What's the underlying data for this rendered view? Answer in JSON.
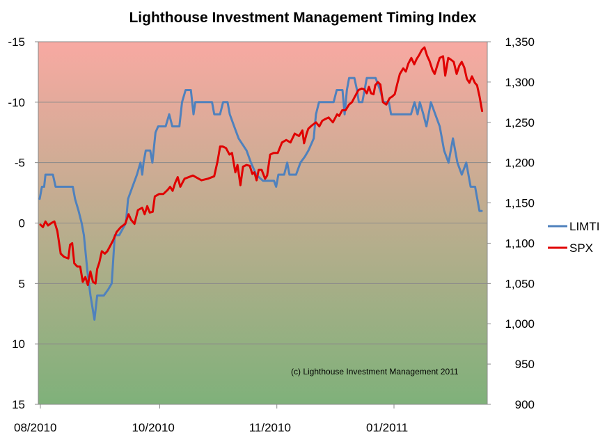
{
  "chart_data": {
    "type": "line",
    "title": "Lighthouse Investment Management Timing Index",
    "annotation": "(c) Lighthouse Investment Management 2011",
    "x_tick_labels": [
      "08/2010",
      "10/2010",
      "11/2010",
      "01/2011"
    ],
    "x_tick_positions": [
      0,
      0.27,
      0.535,
      0.8
    ],
    "y_left": {
      "min": -15,
      "max": 15,
      "inverted": true,
      "ticks": [
        -15,
        -10,
        -5,
        0,
        5,
        10,
        15
      ],
      "tick_labels": [
        "-15",
        "-10",
        "-5",
        "0",
        "5",
        "10",
        "15"
      ]
    },
    "y_right": {
      "min": 900,
      "max": 1350,
      "ticks": [
        1350,
        1300,
        1250,
        1200,
        1150,
        1100,
        1050,
        1000,
        950,
        900
      ],
      "tick_labels": [
        "1,350",
        "1,300",
        "1,250",
        "1,200",
        "1,150",
        "1,100",
        "1,050",
        "1,000",
        "950",
        "900"
      ]
    },
    "grid": "horizontal",
    "background_gradient": {
      "top": "#f8a9a2",
      "bottom": "#7fb17a"
    },
    "legend_position": "right",
    "series": [
      {
        "name": "LIMTI",
        "axis": "left",
        "color": "#4f81bd",
        "points": [
          [
            0.0,
            -2
          ],
          [
            0.005,
            -3
          ],
          [
            0.01,
            -3
          ],
          [
            0.013,
            -4
          ],
          [
            0.03,
            -4
          ],
          [
            0.036,
            -3
          ],
          [
            0.075,
            -3
          ],
          [
            0.08,
            -2
          ],
          [
            0.088,
            -1
          ],
          [
            0.095,
            0
          ],
          [
            0.1,
            1
          ],
          [
            0.108,
            4
          ],
          [
            0.115,
            6
          ],
          [
            0.124,
            8
          ],
          [
            0.13,
            6
          ],
          [
            0.145,
            6
          ],
          [
            0.155,
            5.5
          ],
          [
            0.163,
            5
          ],
          [
            0.17,
            1
          ],
          [
            0.18,
            1
          ],
          [
            0.195,
            0
          ],
          [
            0.2,
            -2
          ],
          [
            0.21,
            -3
          ],
          [
            0.22,
            -4
          ],
          [
            0.228,
            -5
          ],
          [
            0.232,
            -4
          ],
          [
            0.235,
            -5
          ],
          [
            0.24,
            -6
          ],
          [
            0.25,
            -6
          ],
          [
            0.255,
            -5
          ],
          [
            0.262,
            -7.5
          ],
          [
            0.268,
            -8
          ],
          [
            0.285,
            -8
          ],
          [
            0.293,
            -9
          ],
          [
            0.3,
            -8
          ],
          [
            0.316,
            -8
          ],
          [
            0.322,
            -10
          ],
          [
            0.33,
            -11
          ],
          [
            0.342,
            -11
          ],
          [
            0.348,
            -9
          ],
          [
            0.352,
            -10
          ],
          [
            0.39,
            -10
          ],
          [
            0.395,
            -9
          ],
          [
            0.408,
            -9
          ],
          [
            0.415,
            -10
          ],
          [
            0.425,
            -10
          ],
          [
            0.43,
            -9
          ],
          [
            0.44,
            -8
          ],
          [
            0.45,
            -7
          ],
          [
            0.468,
            -6
          ],
          [
            0.478,
            -5
          ],
          [
            0.49,
            -4
          ],
          [
            0.505,
            -3.5
          ],
          [
            0.53,
            -3.5
          ],
          [
            0.535,
            -3
          ],
          [
            0.54,
            -4
          ],
          [
            0.553,
            -4
          ],
          [
            0.56,
            -5
          ],
          [
            0.565,
            -4
          ],
          [
            0.58,
            -4
          ],
          [
            0.59,
            -5
          ],
          [
            0.6,
            -5.5
          ],
          [
            0.608,
            -6
          ],
          [
            0.62,
            -7
          ],
          [
            0.625,
            -9
          ],
          [
            0.632,
            -10
          ],
          [
            0.665,
            -10
          ],
          [
            0.672,
            -11
          ],
          [
            0.685,
            -11
          ],
          [
            0.69,
            -9
          ],
          [
            0.695,
            -11
          ],
          [
            0.7,
            -12
          ],
          [
            0.712,
            -12
          ],
          [
            0.718,
            -11
          ],
          [
            0.722,
            -10
          ],
          [
            0.73,
            -10
          ],
          [
            0.74,
            -12
          ],
          [
            0.76,
            -12
          ],
          [
            0.77,
            -11
          ],
          [
            0.778,
            -10
          ],
          [
            0.79,
            -10
          ],
          [
            0.795,
            -9
          ],
          [
            0.84,
            -9
          ],
          [
            0.848,
            -10
          ],
          [
            0.855,
            -9
          ],
          [
            0.86,
            -10
          ],
          [
            0.868,
            -9
          ],
          [
            0.875,
            -8
          ],
          [
            0.885,
            -10
          ],
          [
            0.895,
            -9
          ],
          [
            0.905,
            -8
          ],
          [
            0.915,
            -6
          ],
          [
            0.925,
            -5
          ],
          [
            0.935,
            -7
          ],
          [
            0.945,
            -5
          ],
          [
            0.955,
            -4
          ],
          [
            0.965,
            -5
          ],
          [
            0.975,
            -3
          ],
          [
            0.985,
            -3
          ],
          [
            0.995,
            -1
          ],
          [
            1.0,
            -1
          ]
        ]
      },
      {
        "name": "SPX",
        "axis": "right",
        "color": "#e00000",
        "points": [
          [
            0.0,
            1123
          ],
          [
            0.006,
            1120
          ],
          [
            0.012,
            1127
          ],
          [
            0.018,
            1122
          ],
          [
            0.026,
            1125
          ],
          [
            0.033,
            1127
          ],
          [
            0.04,
            1115
          ],
          [
            0.048,
            1087
          ],
          [
            0.056,
            1083
          ],
          [
            0.066,
            1081
          ],
          [
            0.07,
            1098
          ],
          [
            0.075,
            1100
          ],
          [
            0.08,
            1075
          ],
          [
            0.087,
            1071
          ],
          [
            0.094,
            1071
          ],
          [
            0.1,
            1052
          ],
          [
            0.106,
            1058
          ],
          [
            0.112,
            1048
          ],
          [
            0.118,
            1065
          ],
          [
            0.124,
            1052
          ],
          [
            0.13,
            1050
          ],
          [
            0.134,
            1068
          ],
          [
            0.139,
            1076
          ],
          [
            0.145,
            1090
          ],
          [
            0.152,
            1087
          ],
          [
            0.158,
            1090
          ],
          [
            0.166,
            1098
          ],
          [
            0.172,
            1104
          ],
          [
            0.18,
            1114
          ],
          [
            0.19,
            1120
          ],
          [
            0.2,
            1124
          ],
          [
            0.208,
            1136
          ],
          [
            0.214,
            1129
          ],
          [
            0.222,
            1124
          ],
          [
            0.23,
            1141
          ],
          [
            0.24,
            1144
          ],
          [
            0.246,
            1136
          ],
          [
            0.252,
            1146
          ],
          [
            0.258,
            1138
          ],
          [
            0.265,
            1139
          ],
          [
            0.27,
            1158
          ],
          [
            0.28,
            1161
          ],
          [
            0.29,
            1161
          ],
          [
            0.3,
            1166
          ],
          [
            0.306,
            1170
          ],
          [
            0.312,
            1165
          ],
          [
            0.318,
            1175
          ],
          [
            0.324,
            1182
          ],
          [
            0.33,
            1170
          ],
          [
            0.34,
            1180
          ],
          [
            0.36,
            1184
          ],
          [
            0.38,
            1178
          ],
          [
            0.395,
            1180
          ],
          [
            0.41,
            1183
          ],
          [
            0.418,
            1202
          ],
          [
            0.424,
            1220
          ],
          [
            0.43,
            1220
          ],
          [
            0.438,
            1218
          ],
          [
            0.446,
            1210
          ],
          [
            0.452,
            1212
          ],
          [
            0.46,
            1188
          ],
          [
            0.465,
            1197
          ],
          [
            0.472,
            1172
          ],
          [
            0.478,
            1195
          ],
          [
            0.486,
            1197
          ],
          [
            0.494,
            1196
          ],
          [
            0.5,
            1186
          ],
          [
            0.505,
            1188
          ],
          [
            0.51,
            1178
          ],
          [
            0.515,
            1191
          ],
          [
            0.522,
            1191
          ],
          [
            0.53,
            1180
          ],
          [
            0.535,
            1184
          ],
          [
            0.542,
            1210
          ],
          [
            0.55,
            1212
          ],
          [
            0.56,
            1212
          ],
          [
            0.57,
            1225
          ],
          [
            0.58,
            1228
          ],
          [
            0.59,
            1225
          ],
          [
            0.6,
            1236
          ],
          [
            0.61,
            1233
          ],
          [
            0.618,
            1240
          ],
          [
            0.622,
            1224
          ],
          [
            0.628,
            1236
          ],
          [
            0.632,
            1242
          ],
          [
            0.64,
            1246
          ],
          [
            0.65,
            1250
          ],
          [
            0.658,
            1245
          ],
          [
            0.665,
            1252
          ],
          [
            0.672,
            1254
          ],
          [
            0.68,
            1256
          ],
          [
            0.69,
            1250
          ],
          [
            0.7,
            1260
          ],
          [
            0.705,
            1258
          ],
          [
            0.712,
            1265
          ],
          [
            0.72,
            1265
          ],
          [
            0.728,
            1272
          ],
          [
            0.735,
            1275
          ],
          [
            0.742,
            1282
          ],
          [
            0.75,
            1290
          ],
          [
            0.758,
            1292
          ],
          [
            0.764,
            1291
          ],
          [
            0.77,
            1286
          ],
          [
            0.775,
            1294
          ],
          [
            0.78,
            1286
          ],
          [
            0.786,
            1285
          ],
          [
            0.79,
            1296
          ],
          [
            0.796,
            1300
          ],
          [
            0.802,
            1297
          ],
          [
            0.808,
            1275
          ],
          [
            0.816,
            1272
          ],
          [
            0.824,
            1280
          ],
          [
            0.83,
            1282
          ],
          [
            0.836,
            1285
          ],
          [
            0.842,
            1298
          ],
          [
            0.848,
            1310
          ],
          [
            0.856,
            1317
          ],
          [
            0.862,
            1313
          ],
          [
            0.868,
            1323
          ],
          [
            0.875,
            1330
          ],
          [
            0.882,
            1322
          ],
          [
            0.888,
            1329
          ],
          [
            0.893,
            1333
          ],
          [
            0.9,
            1340
          ],
          [
            0.906,
            1343
          ],
          [
            0.912,
            1333
          ],
          [
            0.918,
            1326
          ],
          [
            0.925,
            1315
          ],
          [
            0.93,
            1310
          ],
          [
            0.936,
            1320
          ],
          [
            0.942,
            1330
          ],
          [
            0.95,
            1332
          ],
          [
            0.955,
            1308
          ],
          [
            0.962,
            1330
          ],
          [
            0.968,
            1328
          ],
          [
            0.975,
            1325
          ],
          [
            0.982,
            1310
          ],
          [
            0.988,
            1320
          ],
          [
            0.994,
            1325
          ],
          [
            1.0,
            1318
          ],
          [
            1.006,
            1304
          ],
          [
            1.012,
            1299
          ],
          [
            1.018,
            1307
          ],
          [
            1.025,
            1299
          ],
          [
            1.03,
            1296
          ],
          [
            1.036,
            1282
          ],
          [
            1.042,
            1264
          ]
        ]
      }
    ]
  }
}
